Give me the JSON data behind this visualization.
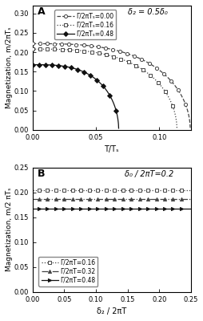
{
  "panel_A": {
    "title_label": "A",
    "annotation": "δ₂ = 0.5δ₀",
    "xlabel": "T/Tₛ",
    "ylabel": "Magnetization, m/2πTₛ",
    "xlim": [
      0,
      0.125
    ],
    "ylim": [
      0,
      0.32
    ],
    "xticks": [
      0,
      0.05,
      0.1
    ],
    "yticks": [
      0,
      0.05,
      0.1,
      0.15,
      0.2,
      0.25,
      0.3
    ],
    "series": [
      {
        "label": "Γ/2πTₛ=0.00",
        "T_c": 0.1245,
        "m0": 0.222,
        "exponent": 3.0,
        "marker": "o",
        "linestyle": "--",
        "color": "#444444",
        "mfc": "white",
        "filled": false,
        "n_markers": 22
      },
      {
        "label": "Γ/2πTₛ=0.16",
        "T_c": 0.114,
        "m0": 0.208,
        "exponent": 3.0,
        "marker": "s",
        "linestyle": ":",
        "color": "#444444",
        "mfc": "white",
        "filled": false,
        "n_markers": 20
      },
      {
        "label": "Γ/2πTₛ=0.48",
        "T_c": 0.068,
        "m0": 0.168,
        "exponent": 3.0,
        "marker": "D",
        "linestyle": "-",
        "color": "#111111",
        "mfc": "#111111",
        "filled": true,
        "n_markers": 14
      }
    ]
  },
  "panel_B": {
    "title_label": "B",
    "annotation": "δ₀ / 2πT=0.2",
    "xlabel": "δ₂ / 2πT",
    "ylabel": "Magnetization, m/2 πTₛ",
    "xlim": [
      0,
      0.25
    ],
    "ylim": [
      0,
      0.25
    ],
    "xticks": [
      0,
      0.05,
      0.1,
      0.15,
      0.2,
      0.25
    ],
    "yticks": [
      0,
      0.05,
      0.1,
      0.15,
      0.2,
      0.25
    ],
    "series": [
      {
        "label": "Γ/2πT=0.16",
        "m_val": 0.204,
        "marker": "s",
        "linestyle": ":",
        "color": "#444444",
        "mfc": "white",
        "n_markers": 18
      },
      {
        "label": "Γ/2πT=0.32",
        "m_val": 0.186,
        "marker": "^",
        "linestyle": "-.",
        "color": "#444444",
        "mfc": "#444444",
        "n_markers": 18
      },
      {
        "label": "Γ/2πT=0.48",
        "m_val": 0.167,
        "marker": ">",
        "linestyle": "-",
        "color": "#111111",
        "mfc": "#111111",
        "n_markers": 18
      }
    ]
  }
}
